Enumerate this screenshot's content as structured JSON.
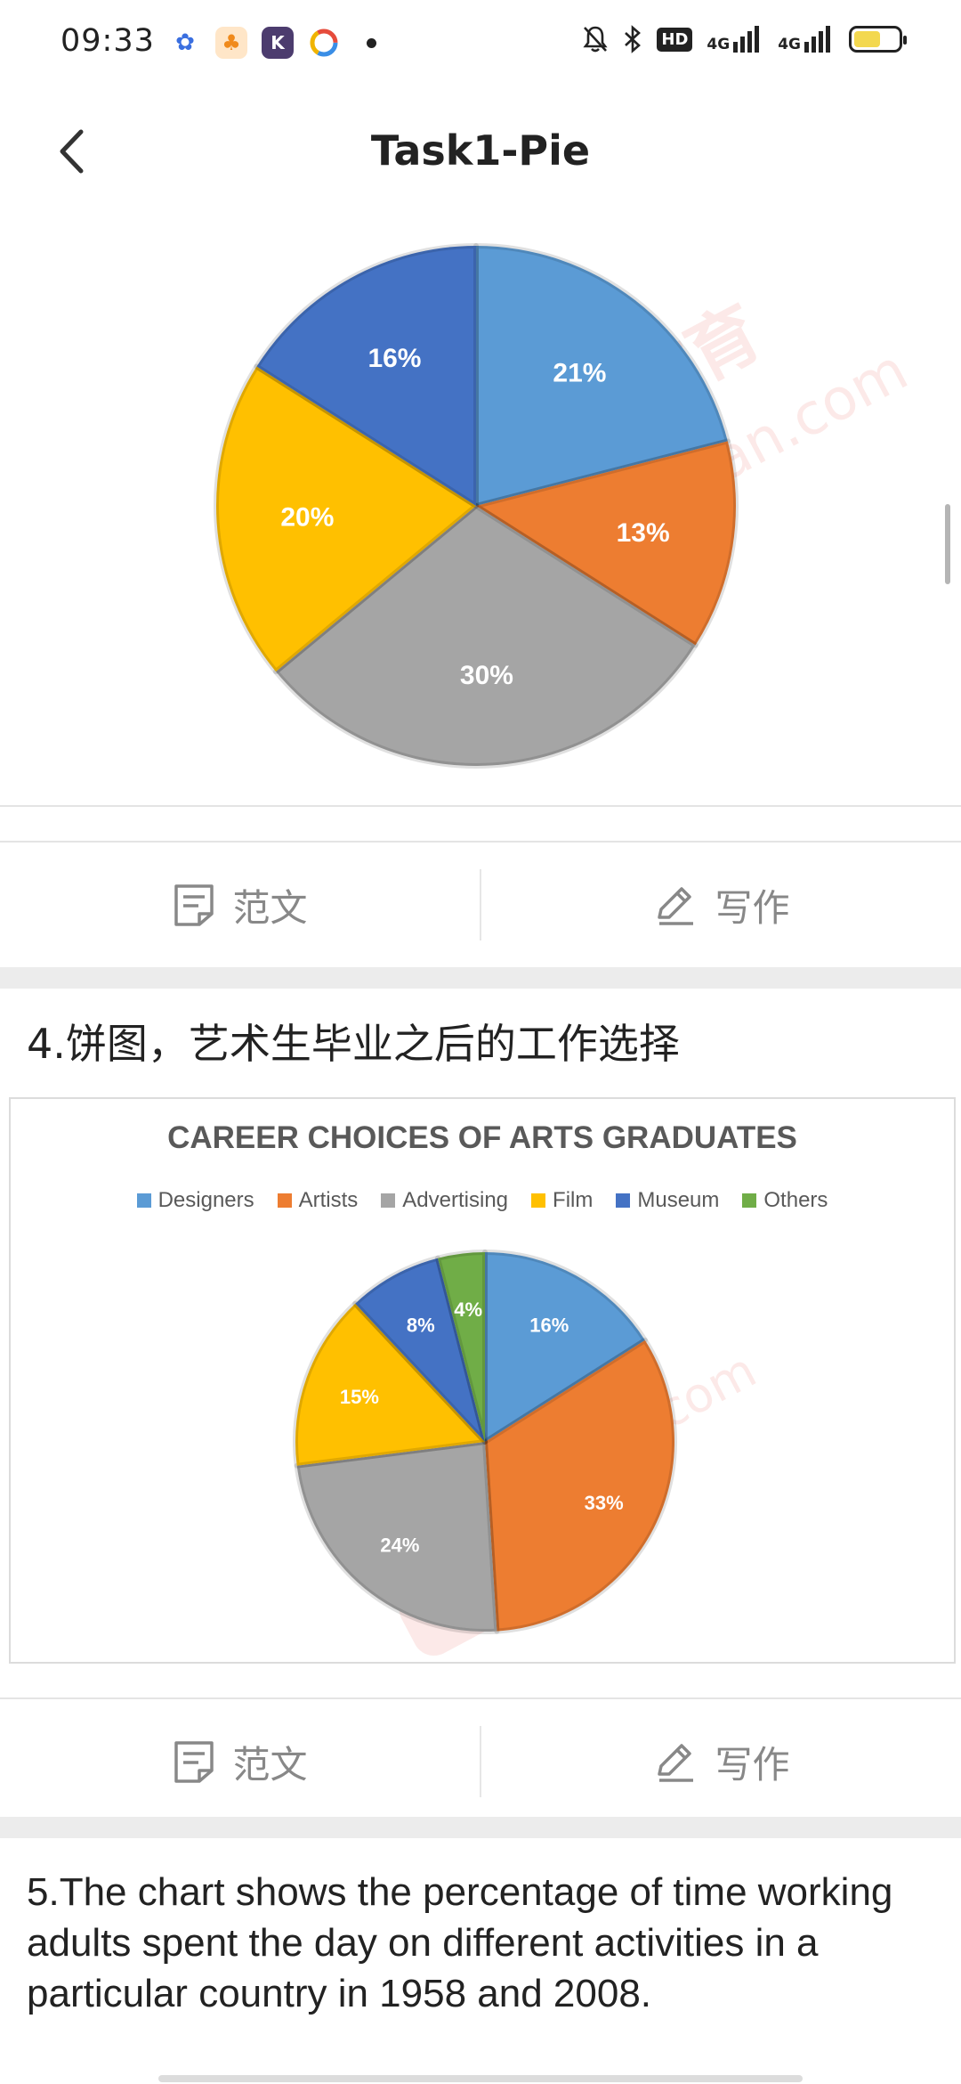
{
  "status": {
    "time": "09:33",
    "network1": "4G",
    "network2": "4G",
    "hd": "HD"
  },
  "header": {
    "title": "Task1-Pie"
  },
  "pie1": {
    "chart_data": {
      "type": "pie",
      "values": [
        21,
        13,
        30,
        20,
        16
      ],
      "labels": [
        "21%",
        "13%",
        "30%",
        "20%",
        "16%"
      ],
      "colors": [
        "#5b9bd5",
        "#ed7d31",
        "#a5a5a5",
        "#ffc000",
        "#4472c4"
      ]
    }
  },
  "actions": {
    "essay_label": "范文",
    "write_label": "写作"
  },
  "section4": {
    "title": "4.饼图，艺术生毕业之后的工作选择",
    "chart_data": {
      "type": "pie",
      "title": "CAREER CHOICES OF ARTS GRADUATES",
      "categories": [
        "Designers",
        "Artists",
        "Advertising",
        "Film",
        "Museum",
        "Others"
      ],
      "values": [
        16,
        33,
        24,
        15,
        8,
        4
      ],
      "labels": [
        "16%",
        "33%",
        "24%",
        "15%",
        "8%",
        "4%"
      ],
      "colors": [
        "#5b9bd5",
        "#ed7d31",
        "#a5a5a5",
        "#ffc000",
        "#4472c4",
        "#70ad47"
      ],
      "legend": "top"
    }
  },
  "section5": {
    "text": "5.The chart shows the percentage of time working adults spent the day on different activities in a particular country in 1958 and 2008."
  }
}
